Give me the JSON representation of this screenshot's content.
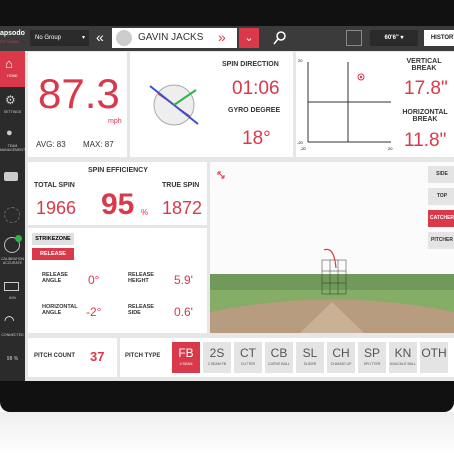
{
  "logo": {
    "name": "apsodo",
    "sub": "PITCHING"
  },
  "topbar": {
    "group": "No Group",
    "player": "GAVIN JACKS",
    "distance": "60'6\"",
    "history": "HISTORY"
  },
  "sidebar": {
    "home": "HOME",
    "settings": "SETTINGS",
    "team": "TEAM MANAGEMENT",
    "calibration": "CALIBRATION ACCURATE",
    "battery": "64%",
    "connection": "CONNECTED",
    "signal": "98 %"
  },
  "velocity": {
    "value": "87.3",
    "unit": "mph",
    "avg_label": "AVG:",
    "avg": "83",
    "max_label": "MAX:",
    "max": "87"
  },
  "spin": {
    "direction_label": "SPIN DIRECTION",
    "direction": "01:06",
    "gyro_label": "GYRO DEGREE",
    "gyro": "18°"
  },
  "break": {
    "ticks": [
      "20",
      "-20",
      "-20",
      "20"
    ],
    "vertical_label": "VERTICAL BREAK",
    "vertical": "17.8\"",
    "horizontal_label": "HORIZONTAL BREAK",
    "horizontal": "11.8\""
  },
  "efficiency": {
    "title": "SPIN EFFICIENCY",
    "total_label": "TOTAL SPIN",
    "total": "1966",
    "value": "95",
    "unit": "%",
    "true_label": "TRUE SPIN",
    "true": "1872"
  },
  "release": {
    "strikezone": "STRIKEZONE",
    "tab": "RELEASE",
    "items": [
      {
        "label": "RELEASE ANGLE",
        "value": "0°"
      },
      {
        "label": "RELEASE HEIGHT",
        "value": "5.9'"
      },
      {
        "label": "HORIZONTAL ANGLE",
        "value": "-2°"
      },
      {
        "label": "RELEASE SIDE",
        "value": "0.6'"
      }
    ]
  },
  "views": [
    "SIDE",
    "TOP",
    "CATCHER",
    "PITCHER"
  ],
  "pitch_count": {
    "label": "PITCH COUNT",
    "value": "37"
  },
  "pitch_type": {
    "label": "PITCH TYPE",
    "types": [
      {
        "code": "FB",
        "name": "4 SEAM"
      },
      {
        "code": "2S",
        "name": "2 SEAM FB"
      },
      {
        "code": "CT",
        "name": "CUTTER"
      },
      {
        "code": "CB",
        "name": "CURVE BALL"
      },
      {
        "code": "SL",
        "name": "SLIDER"
      },
      {
        "code": "CH",
        "name": "CHANGE UP"
      },
      {
        "code": "SP",
        "name": "SPLITTER"
      },
      {
        "code": "KN",
        "name": "KNUCKLE BALL"
      },
      {
        "code": "OTH",
        "name": ""
      }
    ]
  }
}
